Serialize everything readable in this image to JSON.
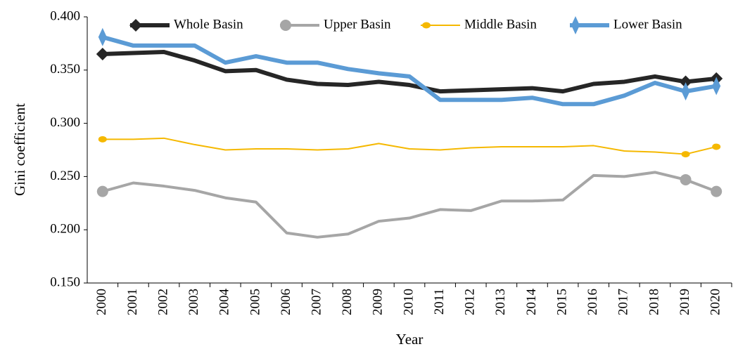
{
  "chart_data": {
    "type": "line",
    "x_label": "Year",
    "y_label": "Gini coefficient",
    "categories": [
      "2000",
      "2001",
      "2002",
      "2003",
      "2004",
      "2005",
      "2006",
      "2007",
      "2008",
      "2009",
      "2010",
      "2011",
      "2012",
      "2013",
      "2014",
      "2015",
      "2016",
      "2017",
      "2018",
      "2019",
      "2020"
    ],
    "series": [
      {
        "name": "Whole Basin",
        "color": "#262626",
        "marker": "diamond",
        "values": [
          0.365,
          0.366,
          0.367,
          0.359,
          0.349,
          0.35,
          0.341,
          0.337,
          0.336,
          0.339,
          0.336,
          0.33,
          0.331,
          0.332,
          0.333,
          0.33,
          0.337,
          0.339,
          0.344,
          0.339,
          0.342
        ]
      },
      {
        "name": "Upper Basin",
        "color": "#a6a6a6",
        "marker": "circle",
        "values": [
          0.236,
          0.244,
          0.241,
          0.237,
          0.23,
          0.226,
          0.197,
          0.193,
          0.196,
          0.208,
          0.211,
          0.219,
          0.218,
          0.227,
          0.227,
          0.228,
          0.251,
          0.25,
          0.254,
          0.247,
          0.236
        ]
      },
      {
        "name": "Middle Basin",
        "color": "#f5b800",
        "marker": "ellipse",
        "values": [
          0.285,
          0.285,
          0.286,
          0.28,
          0.275,
          0.276,
          0.276,
          0.275,
          0.276,
          0.281,
          0.276,
          0.275,
          0.277,
          0.278,
          0.278,
          0.278,
          0.279,
          0.274,
          0.273,
          0.271,
          0.278
        ]
      },
      {
        "name": "Lower Basin",
        "color": "#5b9bd5",
        "marker": "thin-diamond",
        "values": [
          0.381,
          0.373,
          0.373,
          0.373,
          0.357,
          0.363,
          0.357,
          0.357,
          0.351,
          0.347,
          0.344,
          0.322,
          0.322,
          0.322,
          0.324,
          0.318,
          0.318,
          0.326,
          0.338,
          0.33,
          0.335
        ]
      }
    ],
    "ylim": [
      0.15,
      0.4
    ],
    "yticks": [
      {
        "value": 0.15,
        "label": "0.150"
      },
      {
        "value": 0.2,
        "label": "0.200"
      },
      {
        "value": 0.25,
        "label": "0.250"
      },
      {
        "value": 0.3,
        "label": "0.300"
      },
      {
        "value": 0.35,
        "label": "0.350"
      },
      {
        "value": 0.4,
        "label": "0.400"
      }
    ],
    "grid": false,
    "legend": "top"
  }
}
